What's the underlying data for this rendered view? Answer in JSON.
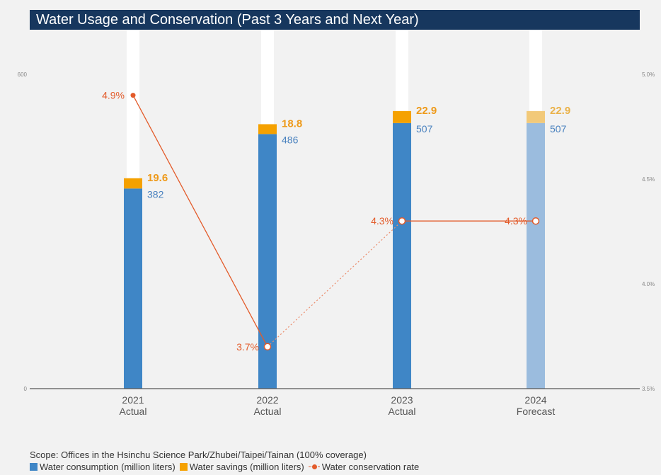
{
  "chart_data": {
    "type": "bar",
    "title": "Water Usage and Conservation (Past 3 Years and Next Year)",
    "categories": [
      {
        "year": "2021",
        "status": "Actual"
      },
      {
        "year": "2022",
        "status": "Actual"
      },
      {
        "year": "2023",
        "status": "Actual"
      },
      {
        "year": "2024",
        "status": "Forecast"
      }
    ],
    "series": [
      {
        "name": "Water consumption (million liters)",
        "values": [
          382,
          486,
          507,
          507
        ],
        "color": "#3f86c6",
        "forecast_color": "#9bbcde"
      },
      {
        "name": "Water savings (million liters)",
        "values": [
          19.6,
          18.8,
          22.9,
          22.9
        ],
        "color": "#f5a100",
        "forecast_color": "#f2c979"
      },
      {
        "name": "Water conservation rate",
        "values": [
          4.9,
          3.7,
          4.3,
          4.3
        ],
        "unit": "%",
        "color": "#e35b2a",
        "axis": "right"
      }
    ],
    "value_labels": {
      "consumption": [
        "382",
        "486",
        "507",
        "507"
      ],
      "savings": [
        "19.6",
        "18.8",
        "22.9",
        "22.9"
      ],
      "rate": [
        "4.9%",
        "3.7%",
        "4.3%",
        "4.3%"
      ]
    },
    "y_left": {
      "ylim": [
        0,
        600
      ],
      "ticks": [
        "0",
        "600"
      ]
    },
    "y_right": {
      "ylim": [
        3.5,
        5.0
      ],
      "ticks": [
        "3.5%",
        "4.0%",
        "4.5%",
        "5.0%"
      ]
    },
    "stacked": true,
    "legend_position": "bottom-left",
    "grid": false
  },
  "footer": {
    "scope": "Scope: Offices in the Hsinchu Science Park/Zhubei/Taipei/Tainan (100% coverage)",
    "legend": [
      {
        "label": "Water consumption (million liters)",
        "kind": "swatch",
        "color": "#3f86c6"
      },
      {
        "label": "Water savings (million liters)",
        "kind": "swatch",
        "color": "#f5a100"
      },
      {
        "label": "Water conservation rate",
        "kind": "line-marker",
        "color": "#e35b2a"
      }
    ]
  }
}
